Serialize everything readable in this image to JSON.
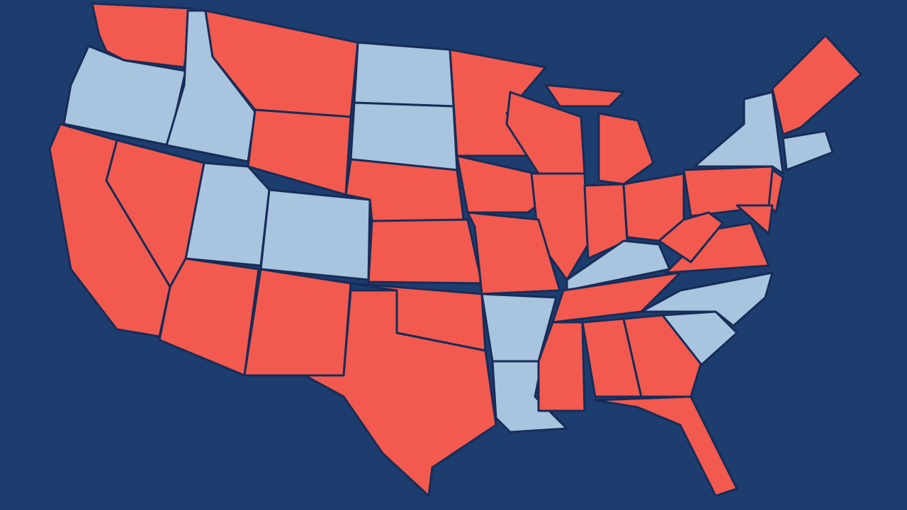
{
  "map": {
    "background": "#1c3d6e",
    "colors": [
      "#f25a4f",
      "#a8c4df"
    ],
    "border": "#182c57"
  }
}
